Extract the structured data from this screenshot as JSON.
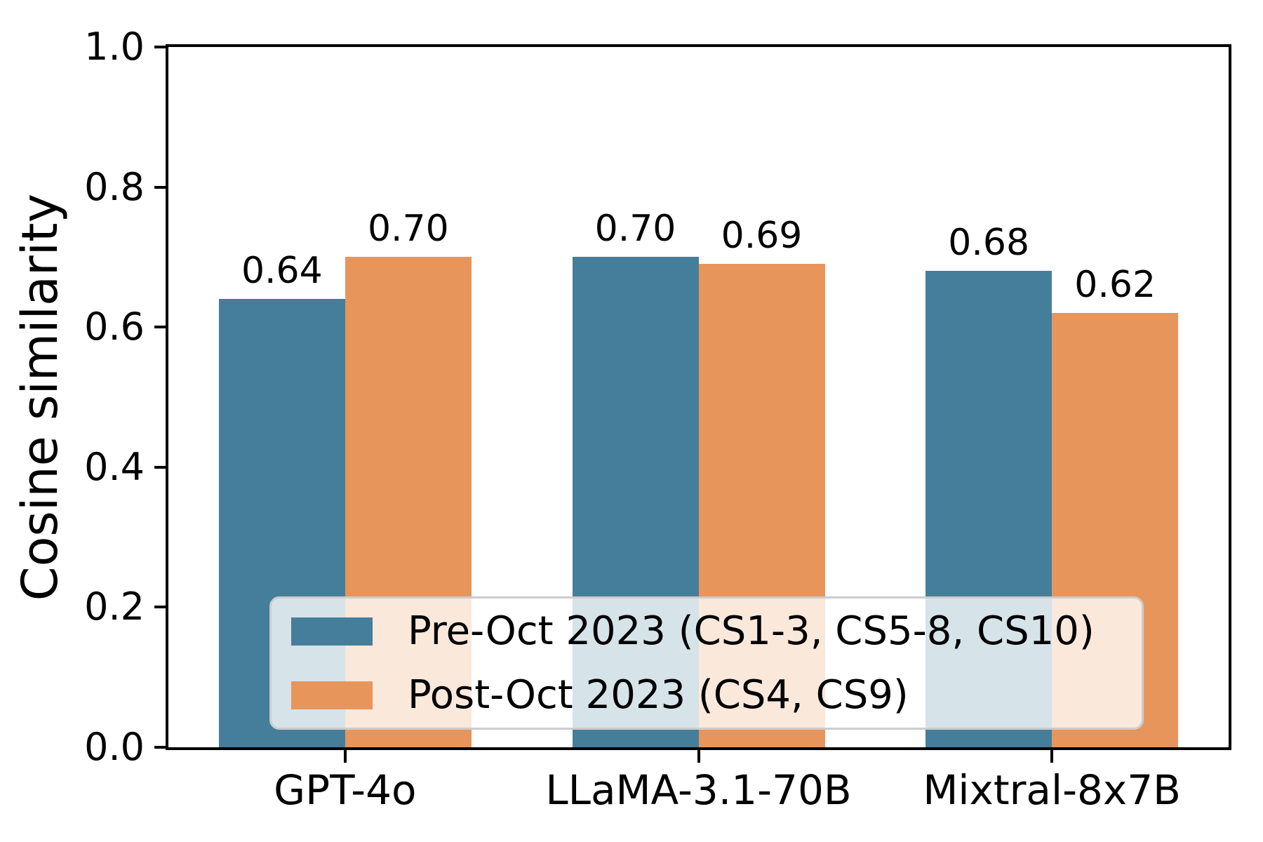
{
  "figure": {
    "background": "#ffffff",
    "axes_box": true,
    "spine_color": "#000000"
  },
  "chart_data": {
    "type": "bar",
    "title": "",
    "xlabel": "",
    "ylabel": "Cosine similarity",
    "categories": [
      "GPT-4o",
      "LLaMA-3.1-70B",
      "Mixtral-8x7B"
    ],
    "series": [
      {
        "name": "Pre-Oct 2023 (CS1-3, CS5-8, CS10)",
        "color": "#457E9B",
        "values": [
          0.64,
          0.7,
          0.68
        ],
        "value_labels": [
          "0.64",
          "0.70",
          "0.68"
        ]
      },
      {
        "name": "Post-Oct 2023 (CS4, CS9)",
        "color": "#E8955C",
        "values": [
          0.7,
          0.69,
          0.62
        ],
        "value_labels": [
          "0.70",
          "0.69",
          "0.62"
        ]
      }
    ],
    "ylim": [
      0.0,
      1.0
    ],
    "yticks": [
      {
        "value": 0.0,
        "label": "0.0"
      },
      {
        "value": 0.2,
        "label": "0.2"
      },
      {
        "value": 0.4,
        "label": "0.4"
      },
      {
        "value": 0.6,
        "label": "0.6"
      },
      {
        "value": 0.8,
        "label": "0.8"
      },
      {
        "value": 1.0,
        "label": "1.0"
      }
    ],
    "grid": false,
    "legend": {
      "position": "lower center",
      "background": "rgba(255,255,255,0.78)",
      "border_color": "#cccccc"
    }
  }
}
